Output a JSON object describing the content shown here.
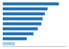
{
  "chart_data": {
    "type": "bar",
    "orientation": "horizontal",
    "values": [
      6893,
      5500,
      5165,
      4892,
      4750,
      4300,
      3776,
      2950,
      1500
    ],
    "colors": [
      "#2171b5",
      "#2171b5",
      "#2171b5",
      "#2171b5",
      "#2171b5",
      "#2171b5",
      "#2171b5",
      "#2171b5",
      "#9ecae1"
    ],
    "xlim": [
      0,
      7800
    ],
    "grid": false,
    "tick_labels": false
  }
}
